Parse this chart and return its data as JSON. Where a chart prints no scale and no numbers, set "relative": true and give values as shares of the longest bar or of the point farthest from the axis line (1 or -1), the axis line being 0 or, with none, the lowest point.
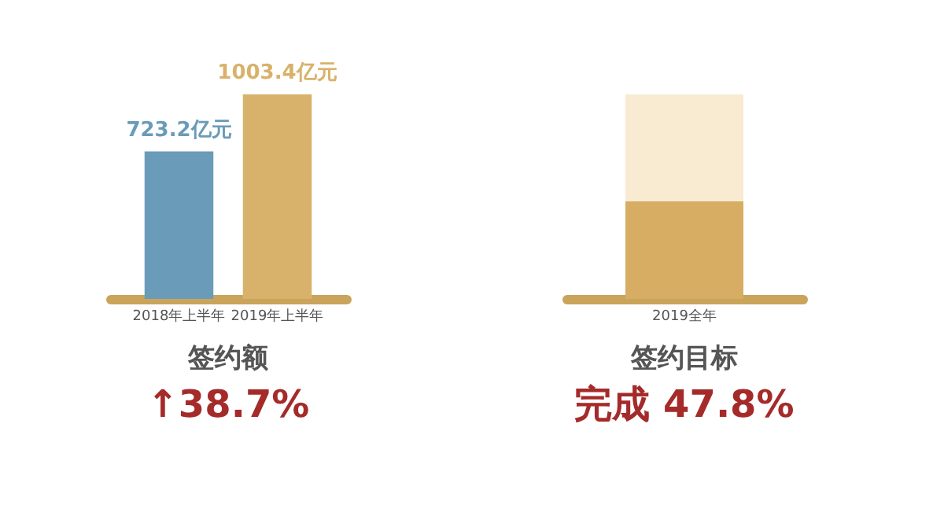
{
  "chart_data": [
    {
      "type": "bar",
      "categories": [
        "2018年上半年",
        "2019年上半年"
      ],
      "values": [
        723.2,
        1003.4
      ],
      "colors": [
        "#6a9bb8",
        "#d8b26a"
      ],
      "value_labels": [
        "723.2亿元",
        "1003.4亿元"
      ],
      "annotations": [
        "签约额",
        "↑38.7%"
      ]
    },
    {
      "type": "bar",
      "stacked": true,
      "relative": true,
      "categories": [
        "2019全年"
      ],
      "series": [
        {
          "color": "#d6ad62",
          "values": [
            0.478
          ]
        },
        {
          "color": "#f8ebd2",
          "values": [
            0.522
          ]
        }
      ],
      "annotations": [
        "签约目标",
        "完成 47.8%"
      ]
    }
  ]
}
